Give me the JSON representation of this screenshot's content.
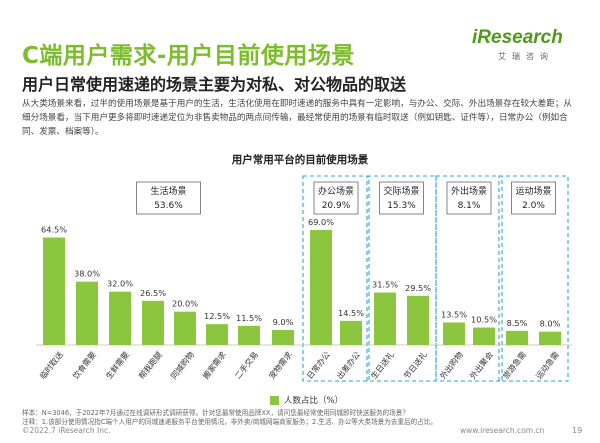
{
  "page": {
    "title": "C端用户需求-用户目前使用场景",
    "subtitle": "用户日常使用速递的场景主要为对私、对公物品的取送",
    "body": "从大类场景来看，过半的使用场景是基于用户的生活，生活化使用在即时速递的服务中具有一定影响，与办公、交际、外出场景存在较大差距；从细分场景看，当下用户更多将即时速递定位为非售卖物品的两点间传输，最经常使用的场景有临时取送（例如钥匙、证件等），日常办公（例如合同、发票、档案等）。",
    "logo_text": "iResearch",
    "logo_sub": "艾瑞咨询",
    "note_line1": "样本：N=3046，于2022年7月通过在线调研形式调研获得。针对您最常使用品牌XX，请问您最经常使用同城即时快送服务的场景？",
    "note_line2": "注释：1.该部分使用情况指C端个人用户的同城速递服务平台使用情况，非外卖/商城网端商家服务；2.生活、办公等大类场景为去重后的占比。",
    "footer_left": "©2022.7 iResearch Inc.",
    "footer_right": "www.iresearch.com.cn",
    "page_number": "19"
  },
  "colors": {
    "accent": "#7cbd2a",
    "bar": "#8cc63f",
    "dash": "#29a9d6"
  },
  "chart_data": {
    "type": "bar",
    "title": "用户常用平台的目前使用场景",
    "legend": "人数占比（%）",
    "unit": "%",
    "ylim": [
      0,
      75
    ],
    "categories": [
      "临时取送",
      "饮食需要",
      "生鲜需要",
      "帮我跑腿",
      "同城购物",
      "搬家需求",
      "二手交易",
      "宠物需求",
      "日常办公",
      "出差办公",
      "生日送礼",
      "节日送礼",
      "外出购物",
      "外出聚会",
      "旅游急需",
      "运动急需"
    ],
    "values": [
      64.5,
      38.0,
      32.0,
      26.5,
      20.0,
      12.5,
      11.5,
      9.0,
      69.0,
      14.5,
      31.5,
      29.5,
      13.5,
      10.5,
      8.5,
      8.0
    ],
    "value_labels": [
      "64.5%",
      "38.0%",
      "32.0%",
      "26.5%",
      "20.0%",
      "12.5%",
      "11.5%",
      "9.0%",
      "69.0%",
      "14.5%",
      "31.5%",
      "29.5%",
      "13.5%",
      "10.5%",
      "8.5%",
      "8.0%"
    ],
    "groups": [
      {
        "name": "生活场景",
        "value": "53.6%",
        "start": 0,
        "end": 7
      },
      {
        "name": "办公场景",
        "value": "20.9%",
        "start": 8,
        "end": 9
      },
      {
        "name": "交际场景",
        "value": "15.3%",
        "start": 10,
        "end": 11
      },
      {
        "name": "外出场景",
        "value": "8.1%",
        "start": 12,
        "end": 13
      },
      {
        "name": "运动场景",
        "value": "2.0%",
        "start": 14,
        "end": 15
      }
    ]
  }
}
